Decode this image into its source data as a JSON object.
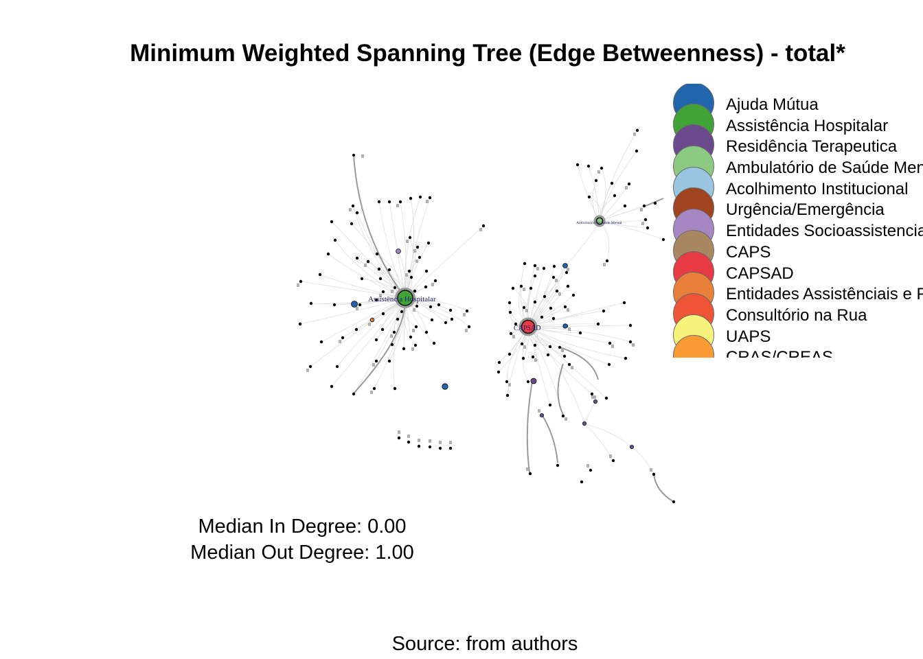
{
  "title": "Minimum Weighted Spanning Tree (Edge Betweenness) - total*",
  "legend": [
    {
      "label": "Ajuda Mútua",
      "color": "#2166ac"
    },
    {
      "label": "Assistência Hospitalar",
      "color": "#41a336"
    },
    {
      "label": "Residência Terapeutica",
      "color": "#6a4a8c"
    },
    {
      "label": "Ambulatório de Saúde Mental",
      "color": "#8cc981"
    },
    {
      "label": "Acolhimento Institucional",
      "color": "#9ac5e0"
    },
    {
      "label": "Urgência/Emergência",
      "color": "#a0431f"
    },
    {
      "label": "Entidades Socioassistenciais",
      "color": "#a687c4"
    },
    {
      "label": "CAPS",
      "color": "#a98762"
    },
    {
      "label": "CAPSAD",
      "color": "#e63a45"
    },
    {
      "label": "Entidades Assistênciais e Filantrópicas",
      "color": "#e8803a"
    },
    {
      "label": "Consultório na Rua",
      "color": "#ee5536"
    },
    {
      "label": "UAPS",
      "color": "#f6f37c"
    },
    {
      "label": "CRAS/CREAS",
      "color": "#fa9a33"
    }
  ],
  "hubs": [
    {
      "label": "Assistência Hospitalar",
      "color": "#41a336"
    },
    {
      "label": "CAPSAD",
      "color": "#e63a45"
    },
    {
      "label": "Ambulatório de Saúde Mental",
      "color": "#8cc981"
    }
  ],
  "stats": {
    "in_degree": "Median In Degree: 0.00",
    "out_degree": "Median Out Degree: 1.00"
  },
  "source": "Source: from authors"
}
